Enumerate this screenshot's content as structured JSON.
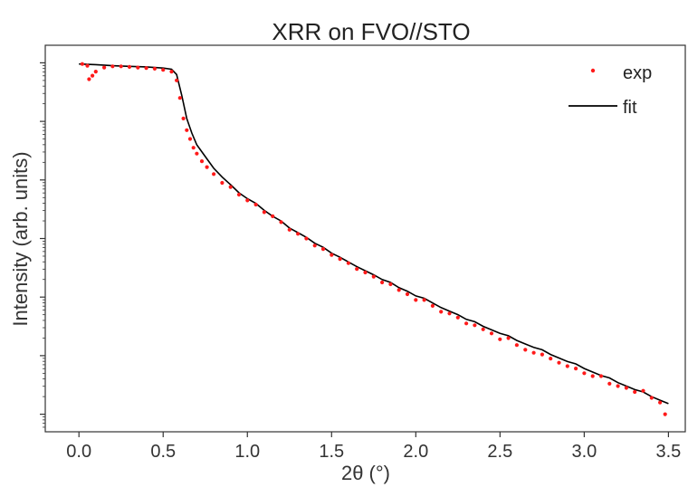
{
  "chart_data": {
    "type": "scatter",
    "title": "XRR on FVO//STO",
    "xlabel": "2θ (°)",
    "ylabel": "Intensity (arb. units)",
    "xlim": [
      -0.2,
      3.6
    ],
    "ylog": true,
    "ylim_log10": [
      -6.3,
      0.3
    ],
    "xticks": [
      0.0,
      0.5,
      1.0,
      1.5,
      2.0,
      2.5,
      3.0,
      3.5
    ],
    "xtick_labels": [
      "0.0",
      "0.5",
      "1.0",
      "1.5",
      "2.0",
      "2.5",
      "3.0",
      "3.5"
    ],
    "ytick_log10": [
      0,
      -1,
      -2,
      -3,
      -4,
      -5,
      -6
    ],
    "y_tick_labels_shown": false,
    "legend_position": "top-right",
    "colors": {
      "exp": "#ff1a1a",
      "fit": "#000000",
      "axis": "#333333"
    },
    "series": [
      {
        "name": "exp",
        "style": "points",
        "x": [
          0.02,
          0.05,
          0.06,
          0.08,
          0.1,
          0.15,
          0.2,
          0.25,
          0.3,
          0.35,
          0.4,
          0.45,
          0.5,
          0.55,
          0.58,
          0.6,
          0.62,
          0.64,
          0.66,
          0.68,
          0.7,
          0.73,
          0.76,
          0.8,
          0.85,
          0.9,
          0.95,
          1.0,
          1.05,
          1.1,
          1.15,
          1.2,
          1.25,
          1.3,
          1.35,
          1.4,
          1.45,
          1.5,
          1.55,
          1.6,
          1.65,
          1.7,
          1.75,
          1.8,
          1.85,
          1.9,
          1.95,
          2.0,
          2.05,
          2.1,
          2.15,
          2.2,
          2.25,
          2.3,
          2.35,
          2.4,
          2.45,
          2.5,
          2.55,
          2.6,
          2.65,
          2.7,
          2.75,
          2.8,
          2.85,
          2.9,
          2.95,
          3.0,
          3.05,
          3.1,
          3.15,
          3.2,
          3.25,
          3.3,
          3.35,
          3.4,
          3.45,
          3.48
        ],
        "y_log10": [
          -0.02,
          -0.05,
          -0.28,
          -0.22,
          -0.15,
          -0.08,
          -0.06,
          -0.06,
          -0.07,
          -0.08,
          -0.09,
          -0.1,
          -0.12,
          -0.15,
          -0.3,
          -0.6,
          -0.95,
          -1.15,
          -1.3,
          -1.45,
          -1.55,
          -1.68,
          -1.78,
          -1.9,
          -2.05,
          -2.12,
          -2.25,
          -2.35,
          -2.42,
          -2.55,
          -2.62,
          -2.72,
          -2.85,
          -2.92,
          -3.0,
          -3.12,
          -3.18,
          -3.28,
          -3.35,
          -3.42,
          -3.52,
          -3.58,
          -3.65,
          -3.75,
          -3.78,
          -3.88,
          -3.95,
          -4.05,
          -4.05,
          -4.15,
          -4.25,
          -4.28,
          -4.35,
          -4.45,
          -4.48,
          -4.55,
          -4.62,
          -4.72,
          -4.7,
          -4.82,
          -4.9,
          -4.95,
          -4.98,
          -5.05,
          -5.12,
          -5.18,
          -5.22,
          -5.3,
          -5.35,
          -5.35,
          -5.48,
          -5.52,
          -5.55,
          -5.62,
          -5.6,
          -5.72,
          -5.8,
          -6.0
        ]
      },
      {
        "name": "fit",
        "style": "line",
        "x": [
          0.0,
          0.1,
          0.2,
          0.3,
          0.4,
          0.5,
          0.55,
          0.58,
          0.61,
          0.64,
          0.67,
          0.7,
          0.75,
          0.8,
          0.85,
          0.9,
          0.95,
          1.0,
          1.05,
          1.1,
          1.15,
          1.2,
          1.25,
          1.3,
          1.35,
          1.4,
          1.45,
          1.5,
          1.55,
          1.6,
          1.65,
          1.7,
          1.75,
          1.8,
          1.85,
          1.9,
          1.95,
          2.0,
          2.05,
          2.1,
          2.15,
          2.2,
          2.25,
          2.3,
          2.35,
          2.4,
          2.45,
          2.5,
          2.55,
          2.6,
          2.65,
          2.7,
          2.75,
          2.8,
          2.85,
          2.9,
          2.95,
          3.0,
          3.05,
          3.1,
          3.15,
          3.2,
          3.25,
          3.3,
          3.35,
          3.4,
          3.45,
          3.5
        ],
        "y_log10": [
          -0.02,
          -0.03,
          -0.05,
          -0.06,
          -0.07,
          -0.09,
          -0.11,
          -0.2,
          -0.55,
          -0.95,
          -1.2,
          -1.4,
          -1.6,
          -1.8,
          -1.95,
          -2.08,
          -2.22,
          -2.32,
          -2.4,
          -2.52,
          -2.62,
          -2.7,
          -2.82,
          -2.9,
          -2.98,
          -3.08,
          -3.15,
          -3.25,
          -3.32,
          -3.4,
          -3.48,
          -3.55,
          -3.62,
          -3.7,
          -3.75,
          -3.84,
          -3.9,
          -3.98,
          -4.02,
          -4.1,
          -4.18,
          -4.24,
          -4.3,
          -4.38,
          -4.42,
          -4.5,
          -4.56,
          -4.62,
          -4.66,
          -4.74,
          -4.8,
          -4.86,
          -4.9,
          -4.98,
          -5.04,
          -5.1,
          -5.14,
          -5.22,
          -5.28,
          -5.34,
          -5.38,
          -5.46,
          -5.52,
          -5.58,
          -5.62,
          -5.7,
          -5.76,
          -5.82
        ]
      }
    ]
  }
}
